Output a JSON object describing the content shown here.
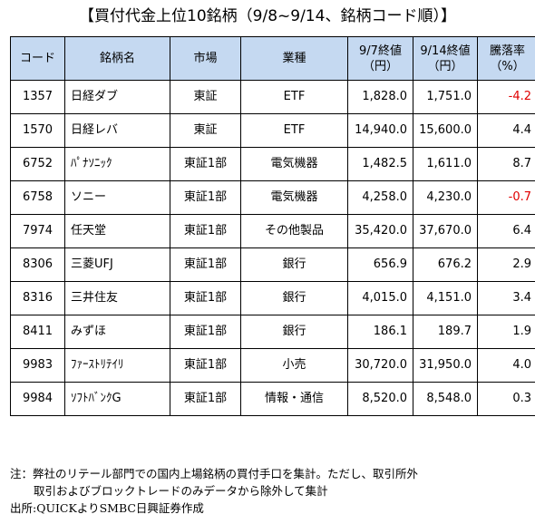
{
  "title": "【買付代金上位10銘柄（9/8~9/14、銘柄コード順）】",
  "table": {
    "headers": {
      "code": "コード",
      "name": "銘柄名",
      "market": "市場",
      "industry": "業種",
      "price_prev_l1": "9/7終値",
      "price_prev_l2": "（円）",
      "price_curr_l1": "9/14終値",
      "price_curr_l2": "（円）",
      "change_l1": "騰落率",
      "change_l2": "（%）"
    },
    "rows": [
      {
        "code": "1357",
        "name": "日経ダブ",
        "market": "東証",
        "industry": "ETF",
        "price_prev": "1,828.0",
        "price_curr": "1,751.0",
        "change": "-4.2"
      },
      {
        "code": "1570",
        "name": "日経レバ",
        "market": "東証",
        "industry": "ETF",
        "price_prev": "14,940.0",
        "price_curr": "15,600.0",
        "change": "4.4"
      },
      {
        "code": "6752",
        "name": "ﾊﾟﾅｿﾆｯｸ",
        "market": "東証1部",
        "industry": "電気機器",
        "price_prev": "1,482.5",
        "price_curr": "1,611.0",
        "change": "8.7"
      },
      {
        "code": "6758",
        "name": "ソニー",
        "market": "東証1部",
        "industry": "電気機器",
        "price_prev": "4,258.0",
        "price_curr": "4,230.0",
        "change": "-0.7"
      },
      {
        "code": "7974",
        "name": "任天堂",
        "market": "東証1部",
        "industry": "その他製品",
        "price_prev": "35,420.0",
        "price_curr": "37,670.0",
        "change": "6.4"
      },
      {
        "code": "8306",
        "name": "三菱UFJ",
        "market": "東証1部",
        "industry": "銀行",
        "price_prev": "656.9",
        "price_curr": "676.2",
        "change": "2.9"
      },
      {
        "code": "8316",
        "name": "三井住友",
        "market": "東証1部",
        "industry": "銀行",
        "price_prev": "4,015.0",
        "price_curr": "4,151.0",
        "change": "3.4"
      },
      {
        "code": "8411",
        "name": "みずほ",
        "market": "東証1部",
        "industry": "銀行",
        "price_prev": "186.1",
        "price_curr": "189.7",
        "change": "1.9"
      },
      {
        "code": "9983",
        "name": "ﾌｧｰｽﾄﾘﾃｲﾘ",
        "market": "東証1部",
        "industry": "小売",
        "price_prev": "30,720.0",
        "price_curr": "31,950.0",
        "change": "4.0"
      },
      {
        "code": "9984",
        "name": "ｿﾌﾄﾊﾞﾝｸG",
        "market": "東証1部",
        "industry": "情報・通信",
        "price_prev": "8,520.0",
        "price_curr": "8,548.0",
        "change": "0.3"
      }
    ]
  },
  "notes": {
    "line1": "注：弊社のリテール部門での国内上場銘柄の買付手口を集計。ただし、取引所外",
    "line2": "取引およびブロックトレードのみデータから除外して集計",
    "line3": "出所:QUICKよりSMBC日興証券作成"
  },
  "colors": {
    "header_bg": "#c5d9f1",
    "negative": "#e00000",
    "border": "#000000"
  }
}
